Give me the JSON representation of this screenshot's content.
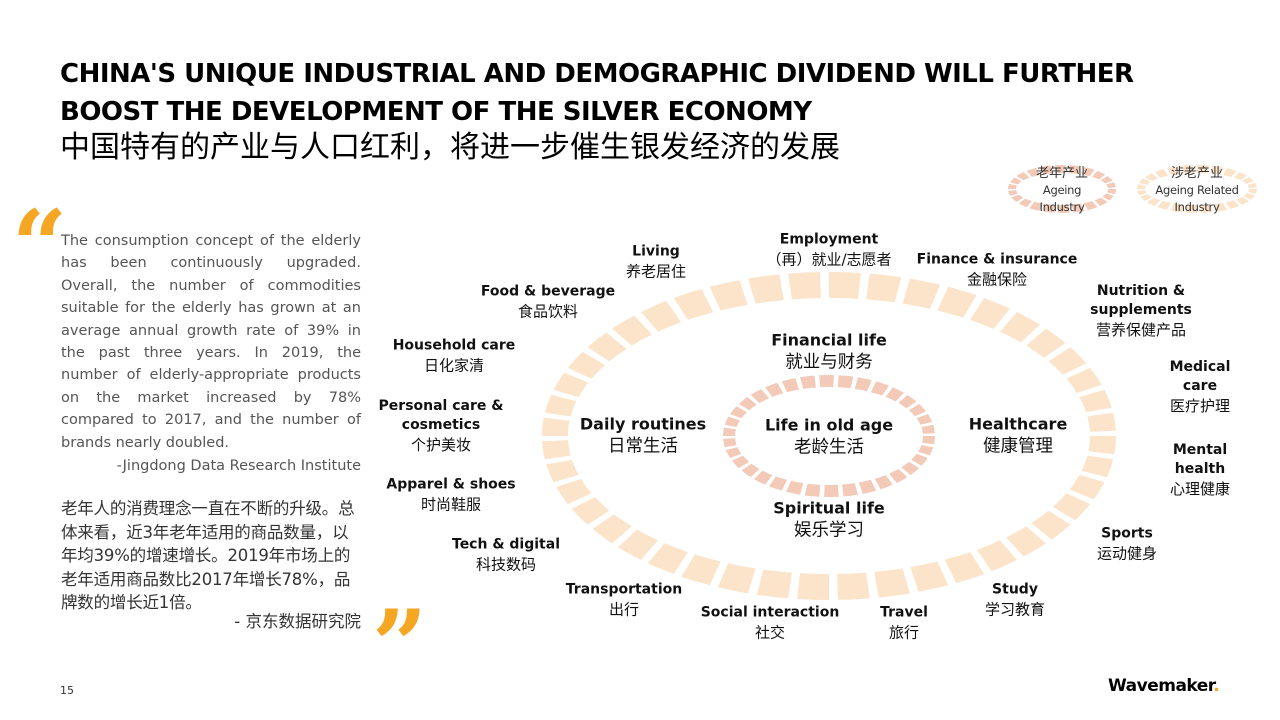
{
  "slide": {
    "title_en_line1": "CHINA'S UNIQUE INDUSTRIAL AND DEMOGRAPHIC DIVIDEND WILL FURTHER",
    "title_en_line2": "BOOST THE DEVELOPMENT OF THE SILVER ECONOMY",
    "title_cn": "中国特有的产业与人口红利，将进一步催生银发经济的发展",
    "page_number": "15",
    "brand": "Wavemaker",
    "accent_color": "#f5a623"
  },
  "legend": [
    {
      "cn": "老年产业",
      "en_line1": "Ageing",
      "en_line2": "Industry",
      "color": "#f3c9b8"
    },
    {
      "cn": "涉老产业",
      "en_line1": "Ageing Related",
      "en_line2": "Industry",
      "color": "#fbe4c9"
    }
  ],
  "quote": {
    "open_mark": "“",
    "close_mark": "”",
    "en_text": "The consumption concept of the elderly has been continuously upgraded. Overall, the number of commodities suitable for the elderly has grown at an average annual growth rate of 39% in the past three years. In 2019, the number of elderly-appropriate products on the market increased by 78% compared to 2017, and the number of brands nearly doubled.",
    "en_attribution": "-Jingdong Data Research Institute",
    "cn_text": "老年人的消费理念一直在不断的升级。总体来看，近3年老年适用的商品数量，以年均39%的增速增长。2019年市场上的老年适用商品数比2017年增长78%，品牌数的增长近1倍。",
    "cn_attribution": "- 京东数据研究院"
  },
  "diagram": {
    "center": {
      "en": "Life in old age",
      "cn": "老龄生活"
    },
    "middle_ring": [
      {
        "en": "Financial life",
        "cn": "就业与财务"
      },
      {
        "en": "Healthcare",
        "cn": "健康管理"
      },
      {
        "en": "Spiritual life",
        "cn": "娱乐学习"
      },
      {
        "en": "Daily routines",
        "cn": "日常生活"
      }
    ],
    "outer_ring": [
      {
        "en": "Employment",
        "cn": "（再）就业/志愿者"
      },
      {
        "en": "Finance & insurance",
        "cn": "金融保险"
      },
      {
        "en": "Nutrition &",
        "en2": "supplements",
        "cn": "营养保健产品"
      },
      {
        "en": "Medical",
        "en2": "care",
        "cn": "医疗护理"
      },
      {
        "en": "Mental",
        "en2": "health",
        "cn": "心理健康"
      },
      {
        "en": "Sports",
        "cn": "运动健身"
      },
      {
        "en": "Study",
        "cn": "学习教育"
      },
      {
        "en": "Travel",
        "cn": "旅行"
      },
      {
        "en": "Social interaction",
        "cn": "社交"
      },
      {
        "en": "Transportation",
        "cn": "出行"
      },
      {
        "en": "Tech & digital",
        "cn": "科技数码"
      },
      {
        "en": "Apparel & shoes",
        "cn": "时尚鞋服"
      },
      {
        "en": "Personal care &",
        "en2": "cosmetics",
        "cn": "个护美妆"
      },
      {
        "en": "Household care",
        "cn": "日化家清"
      },
      {
        "en": "Food & beverage",
        "cn": "食品饮料"
      },
      {
        "en": "Living",
        "cn": "养老居住"
      }
    ],
    "inner_color": "#f3c9b8",
    "outer_color": "#fbe4c9"
  }
}
